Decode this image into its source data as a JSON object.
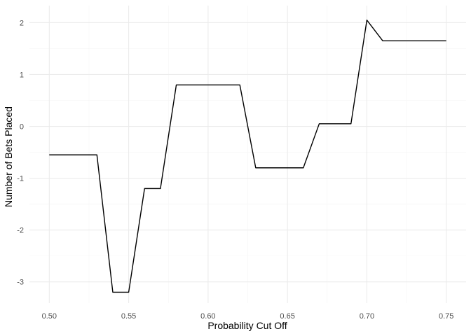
{
  "chart_data": {
    "type": "line",
    "title": "",
    "xlabel": "Probability Cut Off",
    "ylabel": "Number of Bets Placed",
    "xlim": [
      0.4875,
      0.7625
    ],
    "ylim": [
      -3.41,
      2.33
    ],
    "x_ticks": [
      0.5,
      0.55,
      0.6,
      0.65,
      0.7,
      0.75
    ],
    "x_tick_labels": [
      "0.50",
      "0.55",
      "0.60",
      "0.65",
      "0.70",
      "0.75"
    ],
    "y_ticks": [
      -3,
      -2,
      -1,
      0,
      1,
      2
    ],
    "y_tick_labels": [
      "-3",
      "-2",
      "-1",
      "0",
      "1",
      "2"
    ],
    "grid": true,
    "series": [
      {
        "x": [
          0.5,
          0.51,
          0.52,
          0.53,
          0.54,
          0.55,
          0.56,
          0.57,
          0.58,
          0.59,
          0.6,
          0.61,
          0.62,
          0.63,
          0.64,
          0.65,
          0.66,
          0.67,
          0.68,
          0.69,
          0.7,
          0.71,
          0.72,
          0.73,
          0.74,
          0.75
        ],
        "values": [
          -0.55,
          -0.55,
          -0.55,
          -0.55,
          -3.2,
          -3.2,
          -1.2,
          -1.2,
          0.8,
          0.8,
          0.8,
          0.8,
          0.8,
          -0.8,
          -0.8,
          -0.8,
          -0.8,
          0.05,
          0.05,
          0.05,
          2.05,
          1.65,
          1.65,
          1.65,
          1.65,
          1.65
        ]
      }
    ]
  }
}
